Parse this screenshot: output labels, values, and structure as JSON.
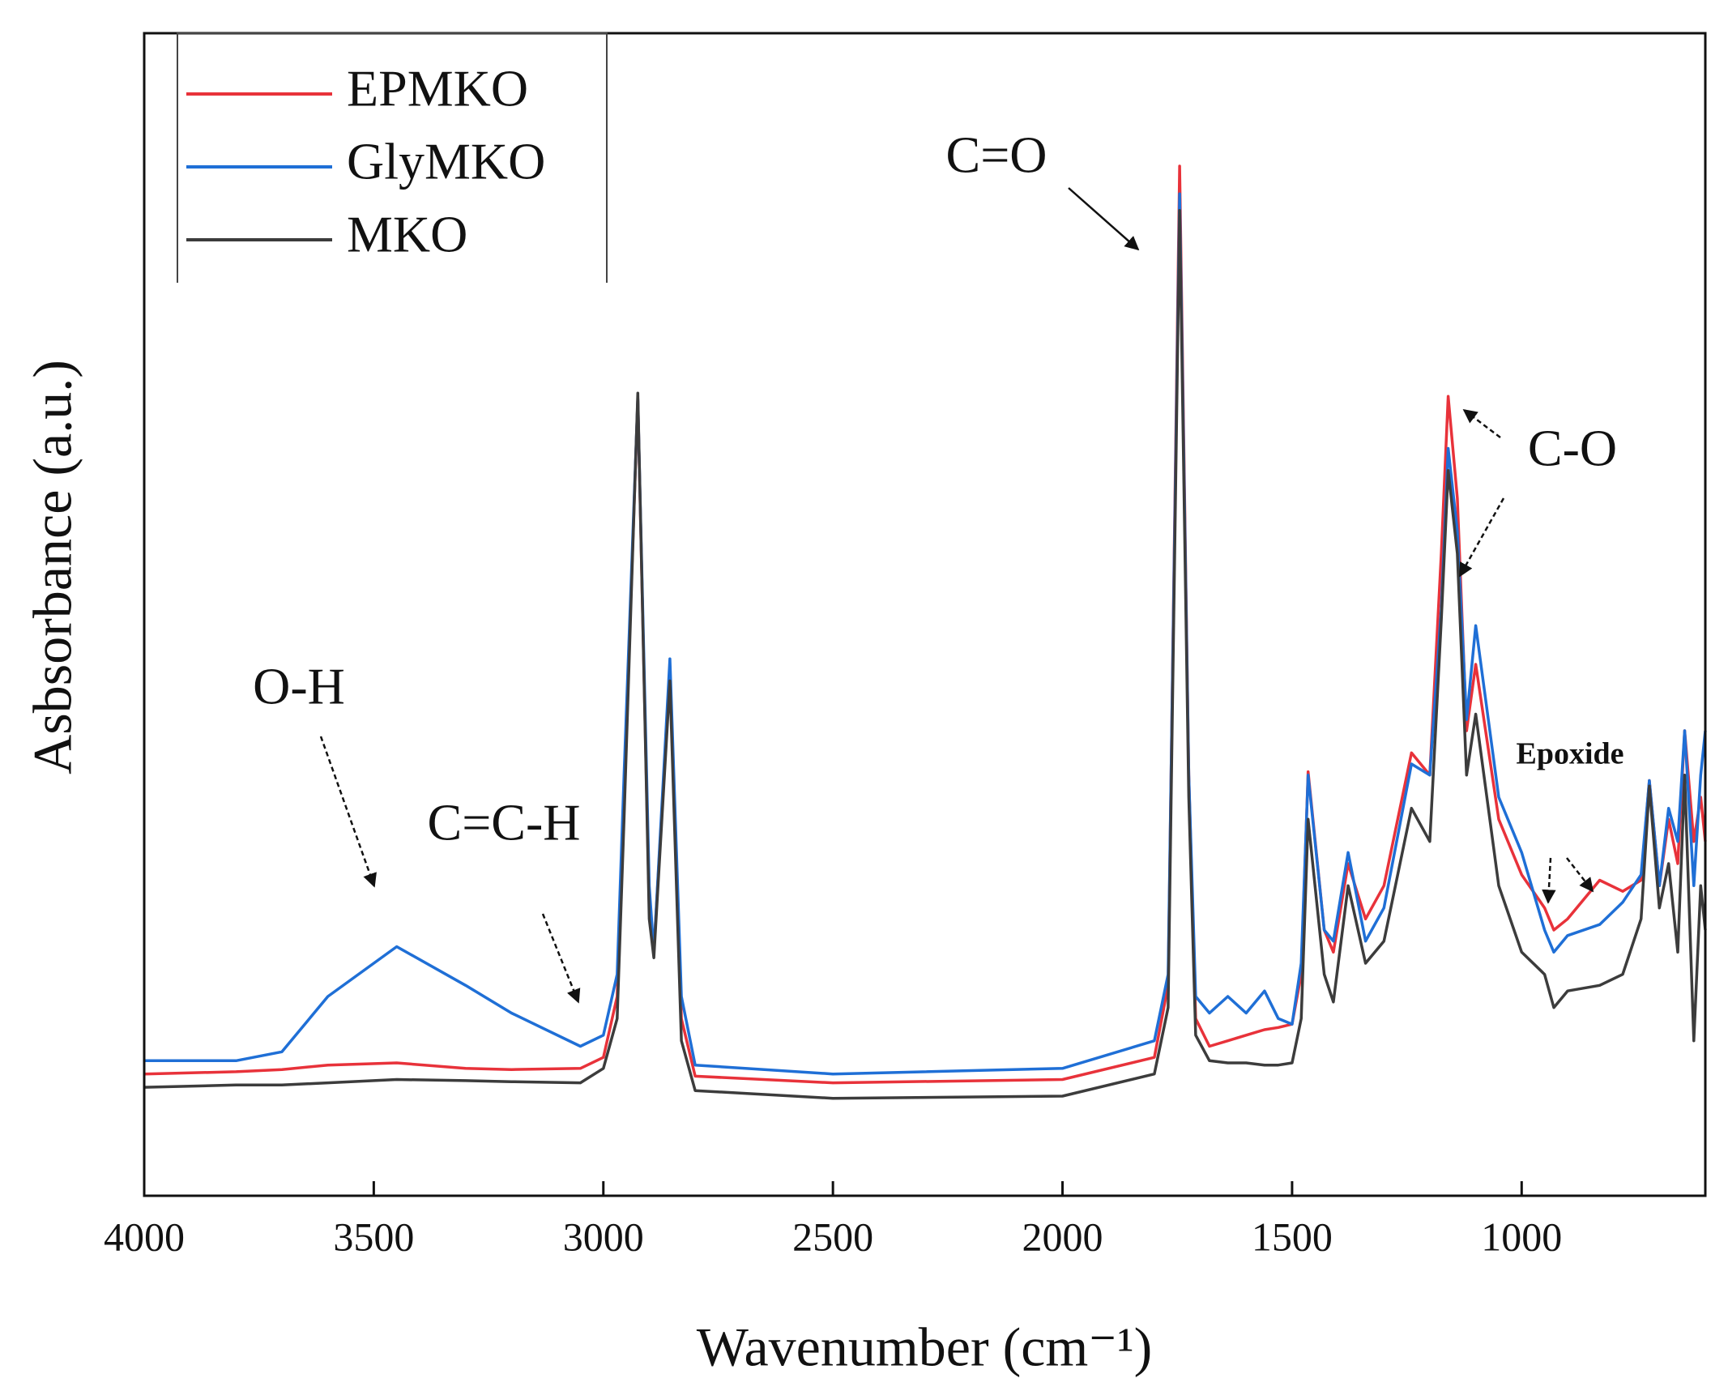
{
  "chart_data": {
    "type": "line",
    "xlabel": "Wavenumber (cm⁻¹)",
    "ylabel": "Asbsorbance (a.u.)",
    "xlim": [
      4000,
      600
    ],
    "xticks": [
      4000,
      3500,
      3000,
      2500,
      2000,
      1500,
      1000
    ],
    "ylim": [
      0,
      105
    ],
    "grid": false,
    "legend": "upper left",
    "annotations": [
      "C=O",
      "O-H",
      "C=C-H",
      "C-O",
      "Epoxide"
    ],
    "x": [
      4000,
      3800,
      3700,
      3600,
      3450,
      3300,
      3200,
      3050,
      3000,
      2970,
      2955,
      2925,
      2900,
      2890,
      2855,
      2830,
      2800,
      2500,
      2000,
      1800,
      1770,
      1745,
      1725,
      1710,
      1680,
      1640,
      1600,
      1560,
      1530,
      1500,
      1480,
      1465,
      1430,
      1410,
      1378,
      1340,
      1300,
      1240,
      1200,
      1175,
      1160,
      1140,
      1120,
      1100,
      1050,
      1000,
      950,
      930,
      900,
      830,
      780,
      740,
      722,
      700,
      680,
      660,
      645,
      625,
      610,
      600
    ],
    "series": [
      {
        "name": "EPMKO",
        "color": "#e8323a",
        "values": [
          11,
          11.2,
          11.4,
          11.8,
          12,
          11.5,
          11.4,
          11.5,
          12.5,
          18,
          36,
          72,
          26,
          22,
          47.5,
          16,
          10.8,
          10.2,
          10.5,
          12.5,
          19,
          93,
          38,
          16,
          13.5,
          14,
          14.5,
          15,
          15.2,
          15.5,
          20,
          38.3,
          24,
          22,
          30,
          25,
          28,
          40,
          38,
          58,
          72.2,
          63,
          42,
          48,
          34,
          29,
          26,
          24,
          25,
          28.5,
          27.5,
          28.5,
          37.5,
          28,
          34,
          30,
          42,
          32,
          36,
          32
        ]
      },
      {
        "name": "GlyMKO",
        "color": "#1f6fd6",
        "values": [
          12.2,
          12.2,
          13,
          18,
          22.5,
          19,
          16.5,
          13.5,
          14.5,
          20,
          38,
          72,
          28,
          22,
          48.5,
          18,
          11.8,
          11,
          11.5,
          14,
          20,
          90.5,
          38,
          18,
          16.5,
          18,
          16.5,
          18.5,
          16,
          15.5,
          21,
          38,
          24,
          23,
          31,
          23,
          26,
          39,
          38,
          53,
          67.5,
          60,
          43,
          51.5,
          36,
          31,
          24,
          22,
          23.5,
          24.5,
          26.5,
          29,
          37.5,
          28,
          35,
          32,
          42,
          28,
          38,
          42
        ]
      },
      {
        "name": "MKO",
        "color": "#3c3c3c",
        "values": [
          9.8,
          10,
          10,
          10.2,
          10.5,
          10.4,
          10.3,
          10.2,
          11.5,
          16,
          34,
          72.5,
          25,
          21.5,
          46.5,
          14,
          9.5,
          8.8,
          9,
          11,
          17,
          89,
          36,
          14.5,
          12.2,
          12,
          12,
          11.8,
          11.8,
          12,
          16,
          34,
          20,
          17.5,
          28,
          21,
          23,
          35,
          32,
          52,
          65.5,
          58,
          38,
          43.5,
          28,
          22,
          20,
          17,
          18.5,
          19,
          20,
          25,
          37,
          26,
          30,
          22,
          38,
          14,
          28,
          24
        ]
      }
    ]
  }
}
